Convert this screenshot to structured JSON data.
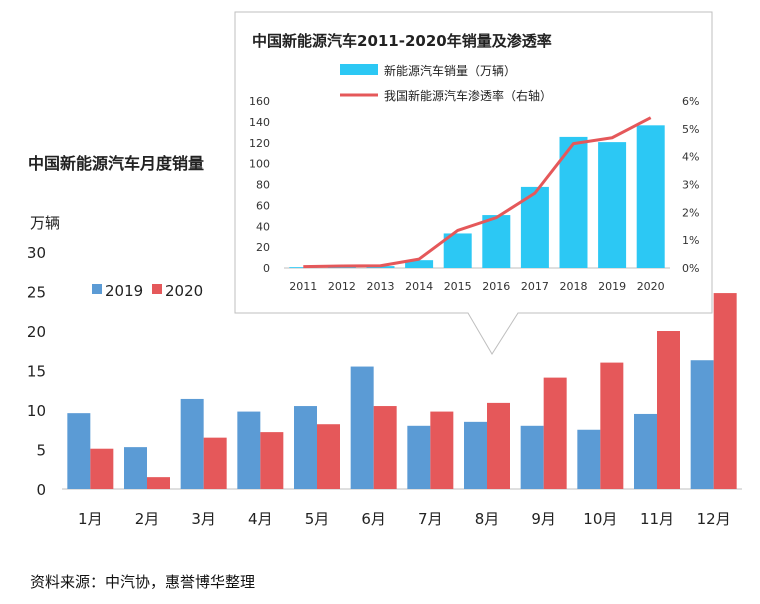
{
  "colors": {
    "c2019": "#5B9BD5",
    "c2020": "#E5585A",
    "inset_bar": "#2CC8F4",
    "inset_line": "#E5585A"
  },
  "main": {
    "title": "中国新能源汽车月度销量",
    "unit": "万辆",
    "source": "资料来源：中汽协，惠誉博华整理"
  },
  "chart_data": [
    {
      "type": "bar",
      "title": "中国新能源汽车月度销量",
      "ylabel": "万辆",
      "ylim": [
        0,
        30
      ],
      "yticks": [
        0,
        5,
        10,
        15,
        20,
        25,
        30
      ],
      "legend_position": "top-left",
      "grid": false,
      "categories": [
        "1月",
        "2月",
        "3月",
        "4月",
        "5月",
        "6月",
        "7月",
        "8月",
        "9月",
        "10月",
        "11月",
        "12月"
      ],
      "series": [
        {
          "name": "2019",
          "values": [
            9.6,
            5.3,
            11.4,
            9.8,
            10.5,
            15.5,
            8.0,
            8.5,
            8.0,
            7.5,
            9.5,
            16.3
          ]
        },
        {
          "name": "2020",
          "values": [
            5.1,
            1.5,
            6.5,
            7.2,
            8.2,
            10.5,
            9.8,
            10.9,
            14.1,
            16.0,
            20.0,
            24.8
          ]
        }
      ]
    },
    {
      "type": "bar",
      "title": "中国新能源汽车2011-2020年销量及渗透率",
      "ylim": [
        0,
        160
      ],
      "yticks": [
        0,
        20,
        40,
        60,
        80,
        100,
        120,
        140,
        160
      ],
      "y2lim": [
        0,
        6
      ],
      "y2ticks": [
        "0%",
        "1%",
        "2%",
        "3%",
        "4%",
        "5%",
        "6%"
      ],
      "legend_position": "top",
      "grid": false,
      "categories": [
        "2011",
        "2012",
        "2013",
        "2014",
        "2015",
        "2016",
        "2017",
        "2018",
        "2019",
        "2020"
      ],
      "series": [
        {
          "name": "新能源汽车销量（万辆）",
          "type": "bar",
          "axis": "left",
          "values": [
            0.8,
            1.3,
            1.8,
            7.5,
            33.1,
            50.7,
            77.7,
            125.6,
            120.6,
            136.7
          ]
        },
        {
          "name": "我国新能源汽车渗透率（右轴）",
          "type": "line",
          "axis": "right",
          "values": [
            0.05,
            0.07,
            0.08,
            0.32,
            1.35,
            1.81,
            2.69,
            4.47,
            4.68,
            5.4
          ]
        }
      ]
    }
  ]
}
